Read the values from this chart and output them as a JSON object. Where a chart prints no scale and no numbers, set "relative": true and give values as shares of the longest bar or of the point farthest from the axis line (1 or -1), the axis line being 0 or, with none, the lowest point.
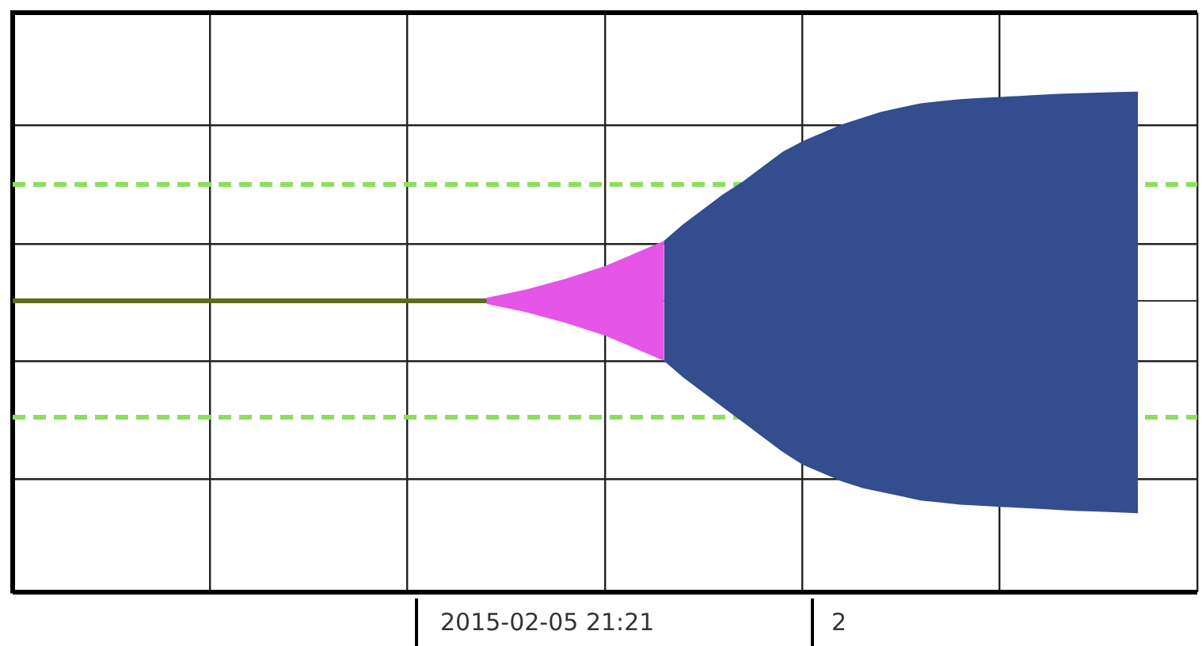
{
  "chart_data": {
    "type": "area",
    "relative": true,
    "grid": true,
    "legend": false,
    "categories": [
      null,
      null,
      null,
      null,
      null,
      null,
      null,
      null,
      null,
      null,
      null,
      null,
      null,
      null,
      null,
      null,
      null,
      null,
      null,
      null,
      null,
      null,
      null,
      null,
      null,
      null,
      null,
      null,
      null,
      null,
      null,
      null,
      null,
      null,
      null,
      null,
      null,
      null,
      null,
      null,
      null,
      null,
      null,
      null,
      null,
      null,
      null,
      null,
      null,
      null,
      null,
      null,
      null,
      null,
      null,
      null,
      null,
      null,
      null,
      null,
      null
    ],
    "series": [
      {
        "type": "line",
        "color": "#5b6b1f",
        "values": [
          0,
          0,
          0,
          0,
          0,
          0,
          0,
          0,
          0,
          0,
          0,
          0,
          0,
          0,
          0,
          0,
          0,
          0,
          0,
          0,
          0,
          0,
          0,
          0,
          0,
          null,
          null,
          null,
          null,
          null,
          null,
          null,
          null,
          null,
          null,
          null,
          null,
          null,
          null,
          null,
          null,
          null,
          null,
          null,
          null,
          null,
          null,
          null,
          null,
          null,
          null,
          null,
          null,
          null,
          null,
          null,
          null,
          null,
          null,
          null,
          null
        ]
      },
      {
        "color": "#e455e8",
        "values": [
          null,
          null,
          null,
          null,
          null,
          null,
          null,
          null,
          null,
          null,
          null,
          null,
          null,
          null,
          null,
          null,
          null,
          null,
          null,
          null,
          null,
          null,
          null,
          null,
          0.01,
          0.03,
          0.05,
          0.075,
          0.1,
          0.13,
          0.16,
          0.2,
          0.24,
          0.28,
          null,
          null,
          null,
          null,
          null,
          null,
          null,
          null,
          null,
          null,
          null,
          null,
          null,
          null,
          null,
          null,
          null,
          null,
          null,
          null,
          null,
          null,
          null,
          null,
          null,
          null,
          null
        ]
      },
      {
        "color": "#e455e8",
        "values": [
          null,
          null,
          null,
          null,
          null,
          null,
          null,
          null,
          null,
          null,
          null,
          null,
          null,
          null,
          null,
          null,
          null,
          null,
          null,
          null,
          null,
          null,
          null,
          null,
          -0.01,
          -0.03,
          -0.05,
          -0.075,
          -0.1,
          -0.13,
          -0.16,
          -0.2,
          -0.24,
          -0.28,
          null,
          null,
          null,
          null,
          null,
          null,
          null,
          null,
          null,
          null,
          null,
          null,
          null,
          null,
          null,
          null,
          null,
          null,
          null,
          null,
          null,
          null,
          null,
          null,
          null,
          null,
          null
        ]
      },
      {
        "color": "#334d8f",
        "values": [
          null,
          null,
          null,
          null,
          null,
          null,
          null,
          null,
          null,
          null,
          null,
          null,
          null,
          null,
          null,
          null,
          null,
          null,
          null,
          null,
          null,
          null,
          null,
          null,
          null,
          null,
          null,
          null,
          null,
          null,
          null,
          null,
          null,
          0.28,
          0.36,
          0.43,
          0.5,
          0.56,
          0.63,
          0.7,
          0.75,
          0.79,
          0.83,
          0.86,
          0.89,
          0.91,
          0.93,
          0.94,
          0.95,
          0.955,
          0.96,
          0.965,
          0.97,
          0.975,
          0.978,
          0.98,
          0.983,
          0.985,
          null,
          null,
          null
        ]
      },
      {
        "color": "#334d8f",
        "values": [
          null,
          null,
          null,
          null,
          null,
          null,
          null,
          null,
          null,
          null,
          null,
          null,
          null,
          null,
          null,
          null,
          null,
          null,
          null,
          null,
          null,
          null,
          null,
          null,
          null,
          null,
          null,
          null,
          null,
          null,
          null,
          null,
          null,
          -0.28,
          -0.36,
          -0.43,
          -0.5,
          -0.57,
          -0.64,
          -0.71,
          -0.77,
          -0.81,
          -0.85,
          -0.88,
          -0.9,
          -0.92,
          -0.94,
          -0.95,
          -0.96,
          -0.965,
          -0.97,
          -0.975,
          -0.98,
          -0.985,
          -0.99,
          -0.993,
          -0.996,
          -1,
          null,
          null,
          null
        ]
      }
    ],
    "ref_lines": [
      {
        "axis": "y",
        "value": 0.55,
        "color": "#8be05a",
        "line_style": "dashed"
      },
      {
        "axis": "y",
        "value": -0.55,
        "color": "#8be05a",
        "line_style": "dashed"
      }
    ],
    "annotations": [
      "2015-02-05 21:21",
      "2"
    ]
  }
}
